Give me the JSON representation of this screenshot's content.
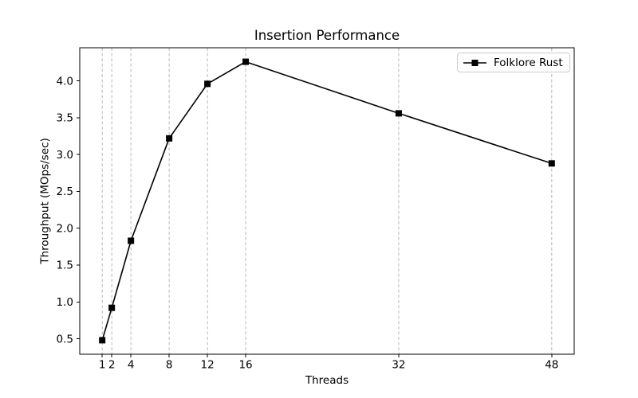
{
  "chart_data": {
    "type": "line",
    "title": "Insertion Performance",
    "xlabel": "Threads",
    "ylabel": "Throughput (MOps/sec)",
    "x": [
      1,
      2,
      4,
      8,
      12,
      16,
      32,
      48
    ],
    "series": [
      {
        "name": "Folklore Rust",
        "color": "#000000",
        "marker": "square",
        "marker_size": 8,
        "line_width": 1.6,
        "values": [
          0.48,
          0.92,
          1.83,
          3.22,
          3.96,
          4.26,
          3.56,
          2.88
        ]
      }
    ],
    "x_ticks": [
      1,
      2,
      4,
      8,
      12,
      16,
      32,
      48
    ],
    "x_tick_labels": [
      "1",
      "2",
      "4",
      "8",
      "12",
      "16",
      "32",
      "48"
    ],
    "y_ticks": [
      0.5,
      1.0,
      1.5,
      2.0,
      2.5,
      3.0,
      3.5,
      4.0
    ],
    "y_tick_labels": [
      "0.5",
      "1.0",
      "1.5",
      "2.0",
      "2.5",
      "3.0",
      "3.5",
      "4.0"
    ],
    "xlim": [
      -1.35,
      50.35
    ],
    "ylim": [
      0.29,
      4.45
    ],
    "grid": {
      "axis": "x",
      "linestyle": "dashed",
      "color": "#b0b0b0"
    },
    "axis_color": "#000000",
    "background": "#ffffff",
    "legend": {
      "position": "upper right",
      "entries": [
        "Folklore Rust"
      ]
    }
  }
}
